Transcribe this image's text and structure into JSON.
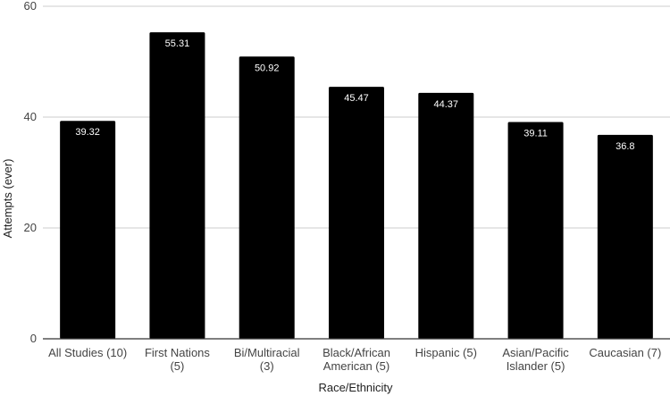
{
  "chart_data": {
    "type": "bar",
    "categories": [
      [
        "All Studies (10)"
      ],
      [
        "First Nations",
        "(5)"
      ],
      [
        "Bi/Multiracial",
        "(3)"
      ],
      [
        "Black/African",
        "American (5)"
      ],
      [
        "Hispanic (5)"
      ],
      [
        "Asian/Pacific",
        "Islander (5)"
      ],
      [
        "Caucasian (7)"
      ]
    ],
    "values": [
      39.32,
      55.31,
      50.92,
      45.47,
      44.37,
      39.11,
      36.8
    ],
    "data_labels": [
      "39.32",
      "55.31",
      "50.92",
      "45.47",
      "44.37",
      "39.11",
      "36.8"
    ],
    "xlabel": "Race/Ethnicity",
    "ylabel": "Attempts (ever)",
    "ylim": [
      0,
      60
    ],
    "yticks": [
      0,
      20,
      40,
      60
    ],
    "grid": true,
    "bar_color": "#000000",
    "grid_color": "#cccccc",
    "axis_color": "#333333"
  }
}
